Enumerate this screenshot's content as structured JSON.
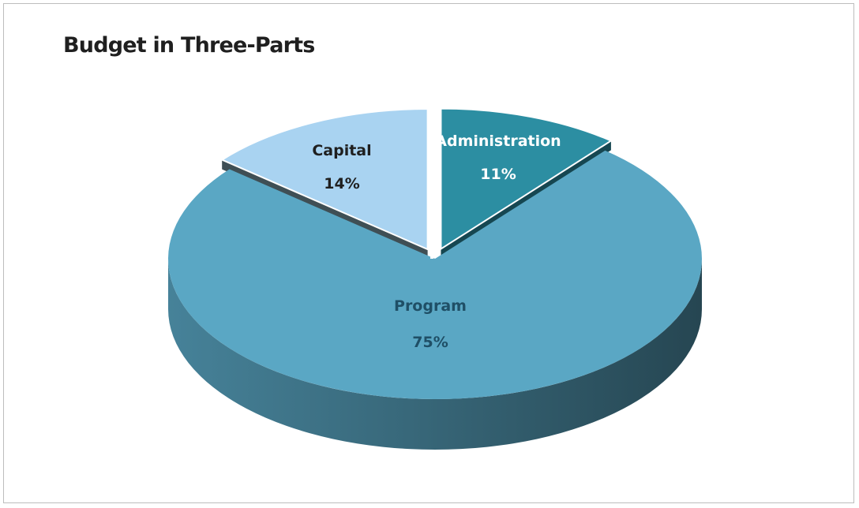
{
  "chart_data": {
    "type": "pie",
    "title": "Budget in Three-Parts",
    "slices": [
      {
        "name": "Administration",
        "value": 11,
        "label": "11%",
        "color": "#2c8ea2",
        "label_color": "#ffffff"
      },
      {
        "name": "Program",
        "value": 75,
        "label": "75%",
        "color": "#5aa7c4",
        "label_color": "#1f4f66"
      },
      {
        "name": "Capital",
        "value": 14,
        "label": "14%",
        "color": "#a9d3f1",
        "label_color": "#1f1f1f"
      }
    ],
    "style": "3d-exploded",
    "legend": "none"
  }
}
